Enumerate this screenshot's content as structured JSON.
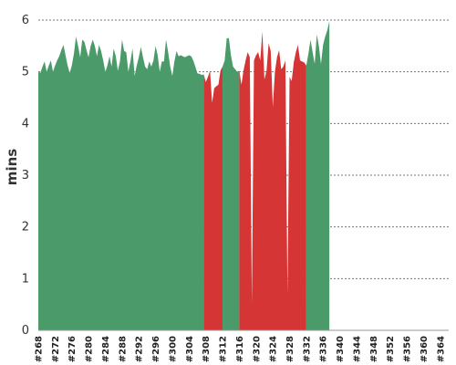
{
  "chart_data": {
    "type": "area",
    "ylabel": "mins",
    "xlabel": "",
    "title": "",
    "ylim": [
      0,
      6
    ],
    "y_ticks": [
      0,
      1,
      2,
      3,
      4,
      5,
      6
    ],
    "grid": true,
    "x_tick_labels": [
      "#268",
      "#272",
      "#276",
      "#280",
      "#284",
      "#288",
      "#292",
      "#296",
      "#300",
      "#304",
      "#308",
      "#312",
      "#316",
      "#320",
      "#324",
      "#328",
      "#332",
      "#336",
      "#340",
      "#344",
      "#348",
      "#352",
      "#356",
      "#360",
      "#364"
    ],
    "x_tick_builds": [
      268,
      272,
      276,
      280,
      284,
      288,
      292,
      296,
      300,
      304,
      308,
      312,
      316,
      320,
      324,
      328,
      332,
      336,
      340,
      344,
      348,
      352,
      356,
      360,
      364
    ],
    "x_range": [
      268,
      366
    ],
    "colors": {
      "success": "#4a9a6a",
      "failure": "#d63535"
    },
    "segments": [
      {
        "status": "success",
        "points": [
          [
            268.0,
            5.0
          ],
          [
            268.5,
            4.98
          ],
          [
            269.0,
            5.1
          ],
          [
            269.5,
            5.2
          ],
          [
            270.0,
            5.0
          ],
          [
            270.5,
            5.12
          ],
          [
            271.0,
            5.22
          ],
          [
            271.5,
            5.0
          ],
          [
            272.0,
            5.12
          ],
          [
            272.5,
            5.22
          ],
          [
            273.0,
            5.3
          ],
          [
            273.5,
            5.42
          ],
          [
            274.0,
            5.52
          ],
          [
            274.5,
            5.32
          ],
          [
            275.0,
            5.12
          ],
          [
            275.5,
            4.98
          ],
          [
            276.0,
            5.12
          ],
          [
            276.5,
            5.35
          ],
          [
            277.0,
            5.68
          ],
          [
            277.5,
            5.5
          ],
          [
            278.0,
            5.28
          ],
          [
            278.5,
            5.62
          ],
          [
            279.0,
            5.58
          ],
          [
            279.5,
            5.42
          ],
          [
            280.0,
            5.28
          ],
          [
            280.5,
            5.5
          ],
          [
            281.0,
            5.62
          ],
          [
            281.5,
            5.5
          ],
          [
            282.0,
            5.3
          ],
          [
            282.5,
            5.52
          ],
          [
            283.0,
            5.4
          ],
          [
            283.5,
            5.22
          ],
          [
            284.0,
            5.0
          ],
          [
            284.5,
            5.12
          ],
          [
            285.0,
            5.3
          ],
          [
            285.5,
            5.1
          ],
          [
            286.0,
            5.45
          ],
          [
            286.5,
            5.3
          ],
          [
            287.0,
            5.02
          ],
          [
            287.5,
            5.2
          ],
          [
            288.0,
            5.62
          ],
          [
            288.5,
            5.4
          ],
          [
            289.0,
            5.38
          ],
          [
            289.5,
            5.0
          ],
          [
            290.0,
            5.2
          ],
          [
            290.5,
            5.45
          ],
          [
            291.0,
            4.92
          ],
          [
            291.5,
            5.12
          ],
          [
            292.0,
            5.28
          ],
          [
            292.5,
            5.48
          ],
          [
            293.0,
            5.28
          ],
          [
            293.5,
            5.1
          ],
          [
            294.0,
            5.05
          ],
          [
            294.5,
            5.2
          ],
          [
            295.0,
            5.1
          ],
          [
            295.5,
            5.22
          ],
          [
            296.0,
            5.5
          ],
          [
            296.5,
            5.32
          ],
          [
            297.0,
            5.0
          ],
          [
            297.5,
            5.2
          ],
          [
            298.0,
            5.2
          ],
          [
            298.5,
            5.62
          ],
          [
            299.0,
            5.38
          ],
          [
            299.5,
            5.1
          ],
          [
            300.0,
            4.92
          ],
          [
            300.5,
            5.2
          ],
          [
            301.0,
            5.4
          ],
          [
            301.5,
            5.3
          ],
          [
            302.0,
            5.32
          ],
          [
            302.5,
            5.3
          ],
          [
            303.0,
            5.28
          ],
          [
            303.5,
            5.3
          ],
          [
            304.0,
            5.32
          ],
          [
            304.5,
            5.3
          ],
          [
            305.0,
            5.22
          ],
          [
            305.5,
            5.1
          ],
          [
            306.0,
            4.97
          ],
          [
            306.5,
            4.96
          ],
          [
            307.0,
            4.94
          ],
          [
            307.5,
            4.95
          ]
        ]
      },
      {
        "status": "failure",
        "points": [
          [
            307.5,
            4.95
          ],
          [
            308.0,
            4.8
          ],
          [
            308.5,
            4.9
          ],
          [
            309.0,
            5.02
          ],
          [
            309.5,
            4.4
          ],
          [
            310.0,
            4.68
          ],
          [
            310.5,
            4.72
          ],
          [
            311.0,
            4.75
          ],
          [
            311.5,
            5.02
          ],
          [
            312.0,
            5.1
          ]
        ]
      },
      {
        "status": "success",
        "points": [
          [
            312.0,
            5.1
          ],
          [
            312.5,
            5.22
          ],
          [
            313.0,
            5.65
          ],
          [
            313.5,
            5.65
          ],
          [
            314.0,
            5.32
          ],
          [
            314.5,
            5.1
          ],
          [
            315.0,
            5.05
          ],
          [
            315.5,
            5.0
          ],
          [
            316.0,
            5.02
          ]
        ]
      },
      {
        "status": "failure",
        "points": [
          [
            316.0,
            5.02
          ],
          [
            316.5,
            4.75
          ],
          [
            317.0,
            5.02
          ],
          [
            317.5,
            5.22
          ],
          [
            318.0,
            5.38
          ],
          [
            318.5,
            5.28
          ],
          [
            319.0,
            0.52
          ],
          [
            319.5,
            5.22
          ],
          [
            320.0,
            5.32
          ],
          [
            320.5,
            5.38
          ],
          [
            321.0,
            5.22
          ],
          [
            321.5,
            5.78
          ],
          [
            322.0,
            4.85
          ],
          [
            322.5,
            5.02
          ],
          [
            323.0,
            5.55
          ],
          [
            323.5,
            5.4
          ],
          [
            324.0,
            4.32
          ],
          [
            324.5,
            5.0
          ],
          [
            325.0,
            5.28
          ],
          [
            325.5,
            5.42
          ],
          [
            326.0,
            5.05
          ],
          [
            326.5,
            5.1
          ],
          [
            327.0,
            5.22
          ],
          [
            327.5,
            0.7
          ],
          [
            328.0,
            4.9
          ],
          [
            328.5,
            4.82
          ],
          [
            329.0,
            5.18
          ],
          [
            329.5,
            5.38
          ],
          [
            330.0,
            5.52
          ],
          [
            330.5,
            5.22
          ],
          [
            331.0,
            5.2
          ],
          [
            331.5,
            5.18
          ],
          [
            332.0,
            5.12
          ]
        ]
      },
      {
        "status": "success",
        "points": [
          [
            332.0,
            5.12
          ],
          [
            332.5,
            5.35
          ],
          [
            333.0,
            5.62
          ],
          [
            333.5,
            5.38
          ],
          [
            334.0,
            5.15
          ],
          [
            334.5,
            5.72
          ],
          [
            335.0,
            5.5
          ],
          [
            335.5,
            5.15
          ],
          [
            336.0,
            5.52
          ],
          [
            336.5,
            5.68
          ],
          [
            337.0,
            5.8
          ],
          [
            337.5,
            5.98
          ]
        ]
      }
    ]
  }
}
